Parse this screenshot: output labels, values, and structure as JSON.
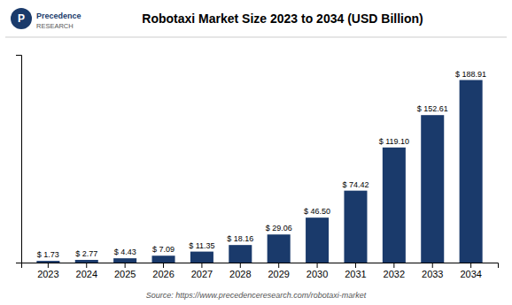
{
  "chart_data": {
    "type": "bar",
    "title": "Robotaxi Market Size 2023 to 2034 (USD Billion)",
    "categories": [
      "2023",
      "2024",
      "2025",
      "2026",
      "2027",
      "2028",
      "2029",
      "2030",
      "2031",
      "2032",
      "2033",
      "2034"
    ],
    "values": [
      1.73,
      2.77,
      4.43,
      7.09,
      11.35,
      18.16,
      29.06,
      46.5,
      74.42,
      119.1,
      152.61,
      188.91
    ],
    "value_labels": [
      "$ 1.73",
      "$ 2.77",
      "$ 4.43",
      "$ 7.09",
      "$ 11.35",
      "$ 18.16",
      "$ 29.06",
      "$ 46.50",
      "$ 74.42",
      "$ 119.10",
      "$ 152.61",
      "$ 188.91"
    ],
    "data_labels": true,
    "color": "#1a3a6b",
    "ylim": [
      0,
      215
    ],
    "grid": false,
    "tick_labels": "x",
    "annotations": [
      "P",
      "Precedence",
      "RESEARCH",
      "Source: https://www.precedenceresearch.com/robotaxi-market"
    ]
  }
}
